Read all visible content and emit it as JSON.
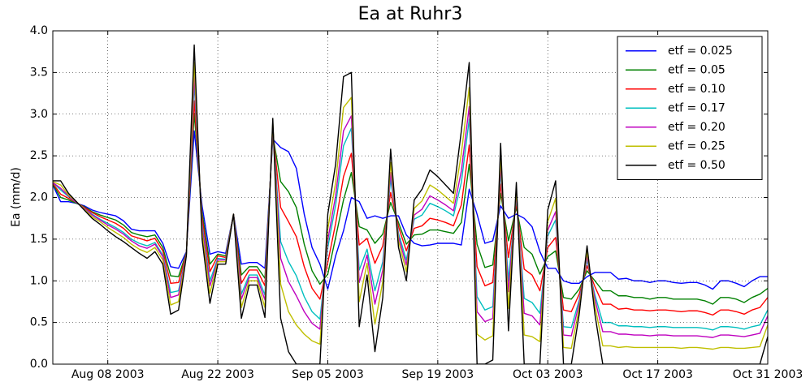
{
  "chart_data": {
    "type": "line",
    "title": "Ea at Ruhr3",
    "y_label": "Ea (mm/d)",
    "x": [
      "2003-08-01",
      "2003-08-02",
      "2003-08-03",
      "2003-08-04",
      "2003-08-05",
      "2003-08-06",
      "2003-08-07",
      "2003-08-08",
      "2003-08-09",
      "2003-08-10",
      "2003-08-11",
      "2003-08-12",
      "2003-08-13",
      "2003-08-14",
      "2003-08-15",
      "2003-08-16",
      "2003-08-17",
      "2003-08-18",
      "2003-08-19",
      "2003-08-20",
      "2003-08-21",
      "2003-08-22",
      "2003-08-23",
      "2003-08-24",
      "2003-08-25",
      "2003-08-26",
      "2003-08-27",
      "2003-08-28",
      "2003-08-29",
      "2003-08-30",
      "2003-08-31",
      "2003-09-01",
      "2003-09-02",
      "2003-09-03",
      "2003-09-04",
      "2003-09-05",
      "2003-09-06",
      "2003-09-07",
      "2003-09-08",
      "2003-09-09",
      "2003-09-10",
      "2003-09-11",
      "2003-09-12",
      "2003-09-13",
      "2003-09-14",
      "2003-09-15",
      "2003-09-16",
      "2003-09-17",
      "2003-09-18",
      "2003-09-19",
      "2003-09-20",
      "2003-09-21",
      "2003-09-22",
      "2003-09-23",
      "2003-09-24",
      "2003-09-25",
      "2003-09-26",
      "2003-09-27",
      "2003-09-28",
      "2003-09-29",
      "2003-09-30",
      "2003-10-01",
      "2003-10-02",
      "2003-10-03",
      "2003-10-04",
      "2003-10-05",
      "2003-10-06",
      "2003-10-07",
      "2003-10-08",
      "2003-10-09",
      "2003-10-10",
      "2003-10-11",
      "2003-10-12",
      "2003-10-13",
      "2003-10-14",
      "2003-10-15",
      "2003-10-16",
      "2003-10-17",
      "2003-10-18",
      "2003-10-19",
      "2003-10-20",
      "2003-10-21",
      "2003-10-22",
      "2003-10-23",
      "2003-10-24",
      "2003-10-25",
      "2003-10-26",
      "2003-10-27",
      "2003-10-28",
      "2003-10-29",
      "2003-10-30",
      "2003-10-31"
    ],
    "series": [
      {
        "name": "etf = 0.025",
        "color": "#0000ff",
        "values": [
          2.15,
          1.95,
          1.95,
          1.93,
          1.9,
          1.85,
          1.82,
          1.8,
          1.78,
          1.72,
          1.62,
          1.6,
          1.6,
          1.6,
          1.45,
          1.17,
          1.15,
          1.35,
          2.8,
          1.9,
          1.32,
          1.35,
          1.33,
          1.8,
          1.2,
          1.22,
          1.22,
          1.15,
          2.7,
          2.6,
          2.55,
          2.35,
          1.8,
          1.4,
          1.2,
          0.9,
          1.3,
          1.6,
          2.0,
          1.95,
          1.75,
          1.78,
          1.75,
          1.78,
          1.78,
          1.55,
          1.45,
          1.42,
          1.43,
          1.45,
          1.45,
          1.45,
          1.43,
          2.1,
          1.8,
          1.45,
          1.48,
          1.9,
          1.75,
          1.8,
          1.75,
          1.65,
          1.35,
          1.15,
          1.15,
          1.0,
          0.97,
          0.97,
          1.05,
          1.1,
          1.1,
          1.1,
          1.02,
          1.03,
          1.0,
          1.0,
          0.98,
          1.0,
          1.0,
          0.98,
          0.97,
          0.98,
          0.98,
          0.95,
          0.9,
          1.0,
          1.0,
          0.97,
          0.93,
          1.0,
          1.05,
          1.05
        ]
      },
      {
        "name": "etf = 0.05",
        "color": "#008000",
        "values": [
          2.16,
          2.0,
          1.97,
          1.93,
          1.89,
          1.83,
          1.79,
          1.76,
          1.73,
          1.67,
          1.58,
          1.55,
          1.53,
          1.55,
          1.4,
          1.06,
          1.05,
          1.34,
          3.01,
          1.82,
          1.2,
          1.32,
          1.3,
          1.8,
          1.07,
          1.17,
          1.17,
          1.03,
          2.75,
          2.19,
          2.07,
          1.88,
          1.44,
          1.12,
          0.96,
          1.08,
          1.52,
          1.97,
          2.3,
          1.65,
          1.61,
          1.45,
          1.56,
          1.94,
          1.7,
          1.44,
          1.55,
          1.56,
          1.61,
          1.61,
          1.59,
          1.57,
          1.7,
          2.4,
          1.44,
          1.16,
          1.19,
          2.05,
          1.48,
          1.88,
          1.4,
          1.32,
          1.08,
          1.29,
          1.36,
          0.8,
          0.78,
          0.9,
          1.12,
          1.0,
          0.88,
          0.88,
          0.82,
          0.82,
          0.8,
          0.8,
          0.78,
          0.8,
          0.8,
          0.78,
          0.78,
          0.78,
          0.78,
          0.76,
          0.72,
          0.8,
          0.8,
          0.78,
          0.74,
          0.8,
          0.84,
          0.91
        ]
      },
      {
        "name": "etf = 0.10",
        "color": "#ff0000",
        "values": [
          2.17,
          2.04,
          1.99,
          1.94,
          1.88,
          1.82,
          1.77,
          1.73,
          1.69,
          1.63,
          1.54,
          1.51,
          1.48,
          1.51,
          1.36,
          0.97,
          0.98,
          1.33,
          3.16,
          1.76,
          1.11,
          1.3,
          1.28,
          1.8,
          0.97,
          1.13,
          1.13,
          0.94,
          2.79,
          1.88,
          1.71,
          1.53,
          1.17,
          0.91,
          0.78,
          1.22,
          1.69,
          2.25,
          2.53,
          1.43,
          1.51,
          1.21,
          1.42,
          2.06,
          1.65,
          1.36,
          1.63,
          1.66,
          1.75,
          1.73,
          1.7,
          1.66,
          1.91,
          2.63,
          1.17,
          0.94,
          0.98,
          2.16,
          1.28,
          1.93,
          1.14,
          1.07,
          0.88,
          1.4,
          1.52,
          0.65,
          0.63,
          0.84,
          1.18,
          0.93,
          0.72,
          0.72,
          0.66,
          0.67,
          0.65,
          0.65,
          0.64,
          0.65,
          0.65,
          0.64,
          0.63,
          0.64,
          0.64,
          0.62,
          0.59,
          0.65,
          0.65,
          0.63,
          0.6,
          0.65,
          0.68,
          0.8
        ]
      },
      {
        "name": "etf = 0.17",
        "color": "#00bfbf",
        "values": [
          2.18,
          2.09,
          2.01,
          1.94,
          1.87,
          1.8,
          1.74,
          1.69,
          1.64,
          1.58,
          1.5,
          1.45,
          1.42,
          1.46,
          1.31,
          0.86,
          0.88,
          1.32,
          3.37,
          1.68,
          1.0,
          1.27,
          1.26,
          1.8,
          0.84,
          1.07,
          1.07,
          0.83,
          2.84,
          1.47,
          1.23,
          1.06,
          0.81,
          0.63,
          0.54,
          1.4,
          1.91,
          2.62,
          2.83,
          1.13,
          1.38,
          0.88,
          1.23,
          2.22,
          1.57,
          1.25,
          1.74,
          1.79,
          1.93,
          1.89,
          1.84,
          1.78,
          2.18,
          2.94,
          0.81,
          0.65,
          0.69,
          2.31,
          1.01,
          2.01,
          0.79,
          0.74,
          0.61,
          1.54,
          1.73,
          0.45,
          0.44,
          0.77,
          1.25,
          0.83,
          0.5,
          0.5,
          0.46,
          0.46,
          0.45,
          0.45,
          0.44,
          0.45,
          0.45,
          0.44,
          0.44,
          0.44,
          0.44,
          0.43,
          0.41,
          0.45,
          0.45,
          0.44,
          0.42,
          0.45,
          0.47,
          0.65
        ]
      },
      {
        "name": "etf = 0.20",
        "color": "#bf00bf",
        "values": [
          2.18,
          2.11,
          2.02,
          1.94,
          1.87,
          1.79,
          1.73,
          1.67,
          1.62,
          1.56,
          1.48,
          1.42,
          1.39,
          1.44,
          1.29,
          0.8,
          0.83,
          1.32,
          3.47,
          1.64,
          0.94,
          1.25,
          1.25,
          1.8,
          0.78,
          1.04,
          1.04,
          0.77,
          2.86,
          1.27,
          0.99,
          0.82,
          0.63,
          0.49,
          0.42,
          1.49,
          2.02,
          2.8,
          2.98,
          0.98,
          1.31,
          0.72,
          1.13,
          2.3,
          1.53,
          1.19,
          1.79,
          1.86,
          2.02,
          1.97,
          1.91,
          1.84,
          2.32,
          3.09,
          0.63,
          0.51,
          0.55,
          2.39,
          0.87,
          2.05,
          0.61,
          0.58,
          0.47,
          1.61,
          1.83,
          0.35,
          0.34,
          0.73,
          1.29,
          0.78,
          0.39,
          0.39,
          0.36,
          0.36,
          0.35,
          0.35,
          0.34,
          0.35,
          0.35,
          0.34,
          0.34,
          0.34,
          0.34,
          0.33,
          0.32,
          0.35,
          0.35,
          0.34,
          0.33,
          0.35,
          0.37,
          0.58
        ]
      },
      {
        "name": "etf = 0.25",
        "color": "#bfbf00",
        "values": [
          2.19,
          2.15,
          2.03,
          1.95,
          1.86,
          1.77,
          1.71,
          1.64,
          1.58,
          1.52,
          1.44,
          1.38,
          1.34,
          1.4,
          1.25,
          0.71,
          0.75,
          1.31,
          3.62,
          1.58,
          0.85,
          1.23,
          1.23,
          1.8,
          0.68,
          1.0,
          1.0,
          0.68,
          2.9,
          0.96,
          0.63,
          0.47,
          0.36,
          0.28,
          0.24,
          1.62,
          2.18,
          3.08,
          3.2,
          0.75,
          1.21,
          0.48,
          0.99,
          2.42,
          1.48,
          1.11,
          1.87,
          1.96,
          2.15,
          2.09,
          2.01,
          1.93,
          2.53,
          3.32,
          0.36,
          0.29,
          0.34,
          2.5,
          0.67,
          2.1,
          0.35,
          0.33,
          0.27,
          1.71,
          1.99,
          0.2,
          0.19,
          0.67,
          1.35,
          0.7,
          0.22,
          0.22,
          0.2,
          0.21,
          0.2,
          0.2,
          0.2,
          0.2,
          0.2,
          0.2,
          0.19,
          0.2,
          0.2,
          0.19,
          0.18,
          0.2,
          0.2,
          0.19,
          0.19,
          0.2,
          0.21,
          0.47
        ]
      },
      {
        "name": "etf = 0.50",
        "color": "#000000",
        "values": [
          2.2,
          2.2,
          2.05,
          1.95,
          1.85,
          1.75,
          1.68,
          1.6,
          1.53,
          1.47,
          1.4,
          1.33,
          1.27,
          1.35,
          1.2,
          0.6,
          0.65,
          1.3,
          3.83,
          1.5,
          0.73,
          1.2,
          1.2,
          1.8,
          0.55,
          0.95,
          0.95,
          0.56,
          2.95,
          0.55,
          0.15,
          0,
          0,
          0,
          0,
          1.8,
          2.4,
          3.45,
          3.5,
          0.45,
          1.07,
          0.15,
          0.8,
          2.58,
          1.4,
          1.0,
          1.97,
          2.1,
          2.33,
          2.25,
          2.15,
          2.05,
          2.8,
          3.62,
          0,
          0,
          0.05,
          2.65,
          0.4,
          2.18,
          0,
          0,
          0,
          1.85,
          2.2,
          0,
          0,
          0.6,
          1.42,
          0.6,
          0,
          0,
          0,
          0,
          0,
          0,
          0,
          0,
          0,
          0,
          0,
          0,
          0,
          0,
          0,
          0,
          0,
          0,
          0,
          0,
          0,
          0.33
        ]
      }
    ],
    "xlim": [
      "2003-08-01",
      "2003-10-31"
    ],
    "xticks": [
      {
        "value": "2003-08-08",
        "label": "Aug 08 2003"
      },
      {
        "value": "2003-08-22",
        "label": "Aug 22 2003"
      },
      {
        "value": "2003-09-05",
        "label": "Sep 05 2003"
      },
      {
        "value": "2003-09-19",
        "label": "Sep 19 2003"
      },
      {
        "value": "2003-10-03",
        "label": "Oct 03 2003"
      },
      {
        "value": "2003-10-17",
        "label": "Oct 17 2003"
      },
      {
        "value": "2003-10-31",
        "label": "Oct 31 2003"
      }
    ],
    "ylim": [
      0,
      4
    ],
    "yticks": [
      {
        "value": 0,
        "label": "0.0"
      },
      0.5,
      {
        "value": 1,
        "label": "1.0"
      },
      1.5,
      {
        "value": 2,
        "label": "2.0"
      },
      2.5,
      {
        "value": 3,
        "label": "3.0"
      },
      3.5,
      {
        "value": 4,
        "label": "4.0"
      }
    ],
    "grid": true,
    "legend": "upper right"
  }
}
